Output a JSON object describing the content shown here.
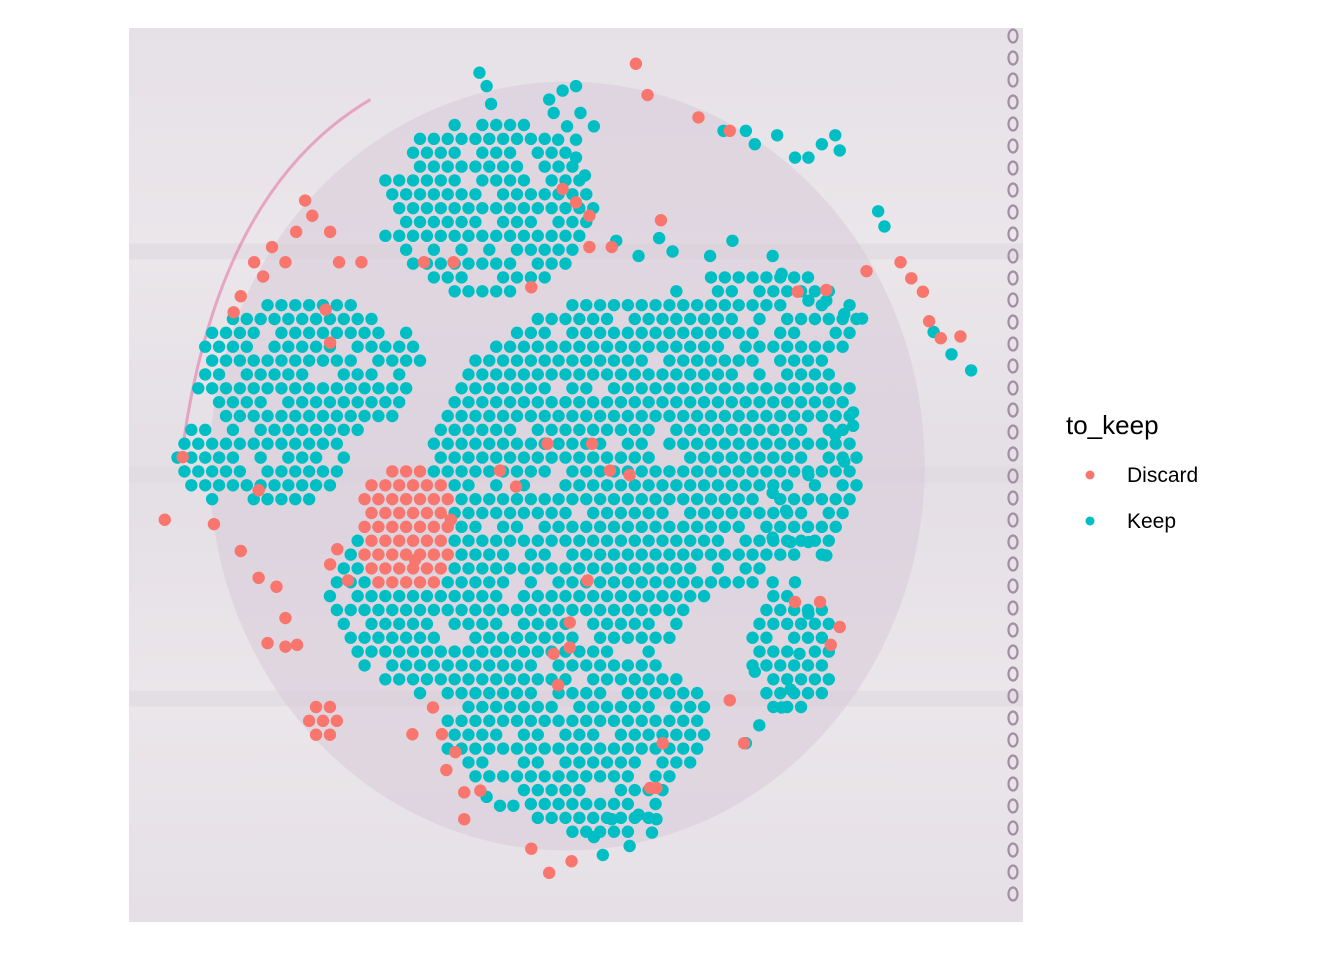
{
  "chart_data": {
    "type": "scatter",
    "title": "",
    "xlabel": "",
    "ylabel": "",
    "grid": false,
    "background": "tissue-histology-image",
    "legend": {
      "title": "to_keep",
      "position": "right",
      "entries": [
        {
          "label": "Discard",
          "color": "#F8766D"
        },
        {
          "label": "Keep",
          "color": "#00BFC4"
        }
      ]
    },
    "series": [
      {
        "name": "Discard",
        "color": "#F8766D",
        "clusters": [
          {
            "cx": 0.31,
            "cy": 0.56,
            "rx": 0.055,
            "ry": 0.075
          },
          {
            "cx": 0.22,
            "cy": 0.77,
            "rx": 0.02,
            "ry": 0.025
          }
        ],
        "points": [
          [
            0.567,
            0.04
          ],
          [
            0.58,
            0.075
          ],
          [
            0.637,
            0.1
          ],
          [
            0.672,
            0.115
          ],
          [
            0.485,
            0.18
          ],
          [
            0.5,
            0.195
          ],
          [
            0.515,
            0.21
          ],
          [
            0.197,
            0.193
          ],
          [
            0.205,
            0.21
          ],
          [
            0.187,
            0.228
          ],
          [
            0.225,
            0.228
          ],
          [
            0.16,
            0.245
          ],
          [
            0.175,
            0.262
          ],
          [
            0.14,
            0.262
          ],
          [
            0.15,
            0.278
          ],
          [
            0.235,
            0.262
          ],
          [
            0.26,
            0.262
          ],
          [
            0.33,
            0.262
          ],
          [
            0.363,
            0.262
          ],
          [
            0.125,
            0.3
          ],
          [
            0.117,
            0.318
          ],
          [
            0.22,
            0.315
          ],
          [
            0.225,
            0.352
          ],
          [
            0.515,
            0.245
          ],
          [
            0.54,
            0.245
          ],
          [
            0.595,
            0.215
          ],
          [
            0.45,
            0.29
          ],
          [
            0.825,
            0.272
          ],
          [
            0.863,
            0.262
          ],
          [
            0.875,
            0.28
          ],
          [
            0.888,
            0.295
          ],
          [
            0.895,
            0.328
          ],
          [
            0.908,
            0.347
          ],
          [
            0.93,
            0.345
          ],
          [
            0.78,
            0.293
          ],
          [
            0.748,
            0.295
          ],
          [
            0.06,
            0.48
          ],
          [
            0.04,
            0.55
          ],
          [
            0.095,
            0.555
          ],
          [
            0.145,
            0.517
          ],
          [
            0.125,
            0.585
          ],
          [
            0.145,
            0.615
          ],
          [
            0.165,
            0.625
          ],
          [
            0.175,
            0.66
          ],
          [
            0.188,
            0.69
          ],
          [
            0.233,
            0.583
          ],
          [
            0.225,
            0.6
          ],
          [
            0.155,
            0.688
          ],
          [
            0.175,
            0.692
          ],
          [
            0.245,
            0.618
          ],
          [
            0.36,
            0.55
          ],
          [
            0.415,
            0.495
          ],
          [
            0.433,
            0.513
          ],
          [
            0.468,
            0.465
          ],
          [
            0.518,
            0.465
          ],
          [
            0.538,
            0.495
          ],
          [
            0.56,
            0.5
          ],
          [
            0.513,
            0.618
          ],
          [
            0.493,
            0.665
          ],
          [
            0.493,
            0.693
          ],
          [
            0.475,
            0.7
          ],
          [
            0.48,
            0.735
          ],
          [
            0.32,
            0.595
          ],
          [
            0.34,
            0.76
          ],
          [
            0.35,
            0.79
          ],
          [
            0.317,
            0.79
          ],
          [
            0.365,
            0.81
          ],
          [
            0.375,
            0.855
          ],
          [
            0.393,
            0.853
          ],
          [
            0.355,
            0.83
          ],
          [
            0.597,
            0.8
          ],
          [
            0.583,
            0.85
          ],
          [
            0.59,
            0.85
          ],
          [
            0.672,
            0.752
          ],
          [
            0.688,
            0.8
          ],
          [
            0.745,
            0.642
          ],
          [
            0.773,
            0.642
          ],
          [
            0.795,
            0.67
          ],
          [
            0.785,
            0.69
          ],
          [
            0.45,
            0.918
          ],
          [
            0.495,
            0.932
          ],
          [
            0.47,
            0.945
          ],
          [
            0.375,
            0.885
          ]
        ]
      },
      {
        "name": "Keep",
        "color": "#00BFC4",
        "clusters": [
          {
            "cx": 0.4,
            "cy": 0.2,
            "rx": 0.12,
            "ry": 0.1
          },
          {
            "cx": 0.2,
            "cy": 0.38,
            "rx": 0.13,
            "ry": 0.08
          },
          {
            "cx": 0.15,
            "cy": 0.48,
            "rx": 0.1,
            "ry": 0.06
          },
          {
            "cx": 0.56,
            "cy": 0.48,
            "rx": 0.22,
            "ry": 0.18
          },
          {
            "cx": 0.42,
            "cy": 0.64,
            "rx": 0.2,
            "ry": 0.12
          },
          {
            "cx": 0.5,
            "cy": 0.78,
            "rx": 0.15,
            "ry": 0.09
          },
          {
            "cx": 0.7,
            "cy": 0.33,
            "rx": 0.12,
            "ry": 0.06
          },
          {
            "cx": 0.76,
            "cy": 0.48,
            "rx": 0.06,
            "ry": 0.12
          },
          {
            "cx": 0.74,
            "cy": 0.7,
            "rx": 0.05,
            "ry": 0.07
          },
          {
            "cx": 0.52,
            "cy": 0.86,
            "rx": 0.08,
            "ry": 0.05
          }
        ],
        "points": [
          [
            0.392,
            0.05
          ],
          [
            0.4,
            0.065
          ],
          [
            0.405,
            0.085
          ],
          [
            0.47,
            0.08
          ],
          [
            0.485,
            0.07
          ],
          [
            0.5,
            0.065
          ],
          [
            0.475,
            0.095
          ],
          [
            0.49,
            0.11
          ],
          [
            0.505,
            0.095
          ],
          [
            0.48,
            0.125
          ],
          [
            0.5,
            0.125
          ],
          [
            0.52,
            0.11
          ],
          [
            0.665,
            0.115
          ],
          [
            0.69,
            0.115
          ],
          [
            0.7,
            0.13
          ],
          [
            0.725,
            0.12
          ],
          [
            0.76,
            0.145
          ],
          [
            0.775,
            0.13
          ],
          [
            0.79,
            0.12
          ],
          [
            0.795,
            0.137
          ],
          [
            0.745,
            0.145
          ],
          [
            0.5,
            0.145
          ],
          [
            0.51,
            0.165
          ],
          [
            0.838,
            0.205
          ],
          [
            0.845,
            0.222
          ],
          [
            0.9,
            0.34
          ],
          [
            0.92,
            0.365
          ],
          [
            0.942,
            0.383
          ],
          [
            0.545,
            0.238
          ],
          [
            0.57,
            0.255
          ],
          [
            0.593,
            0.235
          ],
          [
            0.608,
            0.25
          ],
          [
            0.65,
            0.255
          ],
          [
            0.675,
            0.238
          ],
          [
            0.72,
            0.255
          ],
          [
            0.73,
            0.275
          ],
          [
            0.76,
            0.305
          ],
          [
            0.78,
            0.305
          ],
          [
            0.8,
            0.32
          ],
          [
            0.82,
            0.325
          ],
          [
            0.72,
            0.57
          ],
          [
            0.74,
            0.575
          ],
          [
            0.76,
            0.575
          ],
          [
            0.78,
            0.59
          ],
          [
            0.72,
            0.62
          ],
          [
            0.745,
            0.62
          ],
          [
            0.76,
            0.655
          ],
          [
            0.75,
            0.7
          ],
          [
            0.74,
            0.74
          ],
          [
            0.73,
            0.76
          ],
          [
            0.705,
            0.78
          ],
          [
            0.69,
            0.8
          ],
          [
            0.7,
            0.72
          ],
          [
            0.81,
            0.43
          ],
          [
            0.81,
            0.445
          ],
          [
            0.8,
            0.485
          ],
          [
            0.79,
            0.455
          ],
          [
            0.76,
            0.5
          ],
          [
            0.72,
            0.52
          ],
          [
            0.735,
            0.54
          ],
          [
            0.53,
            0.925
          ],
          [
            0.56,
            0.915
          ],
          [
            0.585,
            0.9
          ],
          [
            0.59,
            0.885
          ],
          [
            0.57,
            0.88
          ],
          [
            0.54,
            0.885
          ],
          [
            0.52,
            0.905
          ],
          [
            0.43,
            0.87
          ],
          [
            0.415,
            0.87
          ],
          [
            0.4,
            0.86
          ]
        ]
      }
    ]
  }
}
